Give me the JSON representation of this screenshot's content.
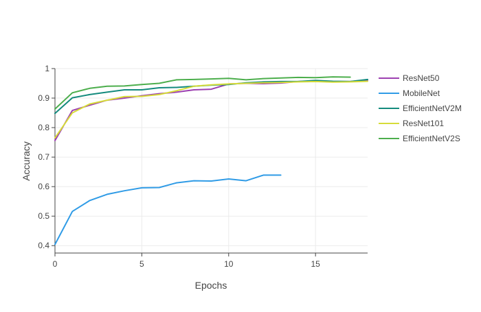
{
  "chart_data": {
    "type": "line",
    "xlabel": "Epochs",
    "ylabel": "Accuracy",
    "xlim": [
      0,
      18
    ],
    "ylim": [
      0.375,
      1.0
    ],
    "x_ticks": [
      0,
      5,
      10,
      15
    ],
    "y_ticks": [
      0.4,
      0.5,
      0.6,
      0.7,
      0.8,
      0.9,
      1
    ],
    "grid": true,
    "legend_position": "right",
    "series": [
      {
        "name": "ResNet50",
        "color": "#9c3fb0",
        "x": [
          0,
          1,
          2,
          3,
          4,
          5,
          6,
          7,
          8,
          9,
          10,
          11,
          12,
          13,
          14,
          15,
          16,
          17,
          18
        ],
        "y": [
          0.756,
          0.858,
          0.876,
          0.893,
          0.9,
          0.908,
          0.915,
          0.92,
          0.928,
          0.93,
          0.948,
          0.95,
          0.949,
          0.951,
          0.956,
          0.958,
          0.956,
          0.956,
          0.961
        ]
      },
      {
        "name": "MobileNet",
        "color": "#2f9be6",
        "x": [
          0,
          1,
          2,
          3,
          4,
          5,
          6,
          7,
          8,
          9,
          10,
          11,
          12,
          13
        ],
        "y": [
          0.404,
          0.516,
          0.553,
          0.574,
          0.586,
          0.596,
          0.597,
          0.613,
          0.62,
          0.619,
          0.626,
          0.62,
          0.639,
          0.639
        ]
      },
      {
        "name": "EfficientNetV2M",
        "color": "#138a7d",
        "x": [
          0,
          1,
          2,
          3,
          4,
          5,
          6,
          7,
          8,
          9,
          10,
          11,
          12,
          13,
          14,
          15,
          16,
          17,
          18
        ],
        "y": [
          0.848,
          0.901,
          0.912,
          0.92,
          0.928,
          0.928,
          0.935,
          0.936,
          0.94,
          0.944,
          0.946,
          0.952,
          0.955,
          0.956,
          0.956,
          0.96,
          0.957,
          0.956,
          0.963
        ]
      },
      {
        "name": "ResNet101",
        "color": "#d6dc38",
        "x": [
          0,
          1,
          2,
          3,
          4,
          5,
          6,
          7,
          8,
          9,
          10,
          11,
          12,
          13,
          14,
          15,
          16,
          17,
          18
        ],
        "y": [
          0.765,
          0.85,
          0.88,
          0.893,
          0.905,
          0.906,
          0.912,
          0.925,
          0.94,
          0.945,
          0.948,
          0.95,
          0.952,
          0.953,
          0.955,
          0.956,
          0.954,
          0.955,
          0.957
        ]
      },
      {
        "name": "EfficientNetV2S",
        "color": "#4cae4c",
        "x": [
          0,
          1,
          2,
          3,
          4,
          5,
          6,
          7,
          8,
          9,
          10,
          11,
          12,
          13,
          14,
          15,
          16,
          17
        ],
        "y": [
          0.863,
          0.918,
          0.933,
          0.94,
          0.941,
          0.946,
          0.95,
          0.962,
          0.963,
          0.965,
          0.967,
          0.962,
          0.966,
          0.968,
          0.97,
          0.969,
          0.972,
          0.971
        ]
      }
    ]
  }
}
